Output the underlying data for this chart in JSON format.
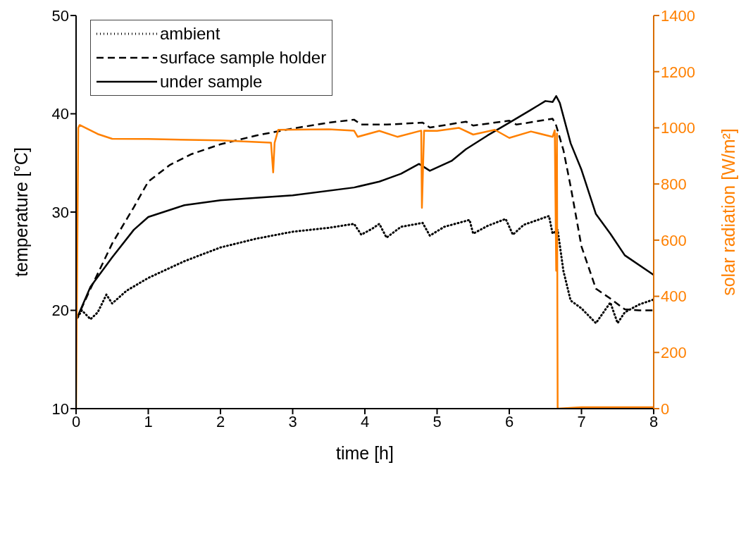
{
  "chart_data": {
    "type": "line",
    "xlabel": "time [h]",
    "ylabel": "temperature [°C]",
    "y2label": "solar radiation [W/m²]",
    "xlim": [
      0,
      8
    ],
    "xticks": [
      0,
      1,
      2,
      3,
      4,
      5,
      6,
      7,
      8
    ],
    "ylim": [
      10,
      50
    ],
    "yticks": [
      10,
      20,
      30,
      40,
      50
    ],
    "y2lim": [
      0,
      1400
    ],
    "y2ticks": [
      0,
      200,
      400,
      600,
      800,
      1000,
      1200,
      1400
    ],
    "legend": "top left",
    "marker": "none",
    "series": [
      {
        "name": "ambient",
        "color": "#000000",
        "line_style": "dotted",
        "x": [
          0,
          0.08,
          0.2,
          0.3,
          0.42,
          0.5,
          0.7,
          1,
          1.5,
          2,
          2.5,
          3,
          3.5,
          3.85,
          3.95,
          4.1,
          4.2,
          4.3,
          4.5,
          4.8,
          4.9,
          5.1,
          5.45,
          5.5,
          5.7,
          5.95,
          6.05,
          6.2,
          6.55,
          6.6,
          6.67,
          6.75,
          6.85,
          7,
          7.2,
          7.4,
          7.5,
          7.6,
          7.8,
          8
        ],
        "values": [
          19,
          20,
          19.1,
          19.8,
          21.6,
          20.7,
          22,
          23.3,
          25,
          26.4,
          27.3,
          28,
          28.4,
          28.8,
          27.7,
          28.3,
          28.8,
          27.4,
          28.5,
          28.9,
          27.6,
          28.5,
          29.2,
          27.8,
          28.6,
          29.3,
          27.7,
          28.7,
          29.6,
          27.8,
          28.2,
          24,
          21,
          20.2,
          18.7,
          20.8,
          18.7,
          19.8,
          20.6,
          21.1
        ]
      },
      {
        "name": "surface sample holder",
        "color": "#000000",
        "line_style": "dashed",
        "x": [
          0,
          0.2,
          0.5,
          0.8,
          1,
          1.3,
          1.6,
          2,
          2.5,
          3,
          3.5,
          3.85,
          3.95,
          4.3,
          4.8,
          4.9,
          5.4,
          5.5,
          6,
          6.1,
          6.6,
          6.65,
          6.75,
          6.85,
          7,
          7.2,
          7.4,
          7.6,
          7.8,
          8
        ],
        "values": [
          19,
          22.2,
          26.8,
          30.5,
          33.1,
          34.8,
          35.9,
          36.9,
          37.8,
          38.5,
          39.1,
          39.4,
          38.9,
          38.9,
          39.1,
          38.6,
          39.2,
          38.8,
          39.3,
          38.9,
          39.5,
          38.8,
          36.3,
          32.6,
          26.5,
          22.2,
          21.2,
          20.1,
          20,
          20
        ]
      },
      {
        "name": "under sample",
        "color": "#000000",
        "line_style": "solid",
        "x": [
          0,
          0.2,
          0.5,
          0.8,
          1,
          1.5,
          2,
          3,
          3.85,
          4.2,
          4.5,
          4.75,
          4.9,
          5.2,
          5.4,
          5.7,
          6,
          6.3,
          6.5,
          6.6,
          6.65,
          6.7,
          6.85,
          7,
          7.2,
          7.4,
          7.6,
          8
        ],
        "values": [
          19,
          22.4,
          25.4,
          28.2,
          29.5,
          30.7,
          31.2,
          31.7,
          32.5,
          33.1,
          33.9,
          34.9,
          34.2,
          35.2,
          36.4,
          37.8,
          39.1,
          40.4,
          41.3,
          41.2,
          41.8,
          41.1,
          37,
          34.3,
          29.8,
          27.8,
          25.6,
          23.6
        ]
      },
      {
        "color": "#ff8000",
        "line_style": "solid",
        "axis": "y2",
        "x": [
          0,
          0.03,
          0.05,
          0.3,
          0.5,
          1,
          2,
          2.7,
          2.73,
          2.75,
          2.8,
          3.5,
          3.85,
          3.9,
          4.2,
          4.45,
          4.78,
          4.79,
          4.82,
          5,
          5.3,
          5.5,
          5.8,
          6,
          6.3,
          6.6,
          6.63,
          6.65,
          6.66,
          6.67,
          7,
          8
        ],
        "values": [
          0,
          1000,
          1010,
          978,
          961,
          960,
          955,
          947,
          841,
          947,
          993,
          995,
          990,
          968,
          989,
          968,
          990,
          715,
          990,
          989,
          1000,
          976,
          993,
          964,
          987,
          968,
          991,
          491,
          980,
          0,
          5,
          5
        ]
      }
    ]
  }
}
